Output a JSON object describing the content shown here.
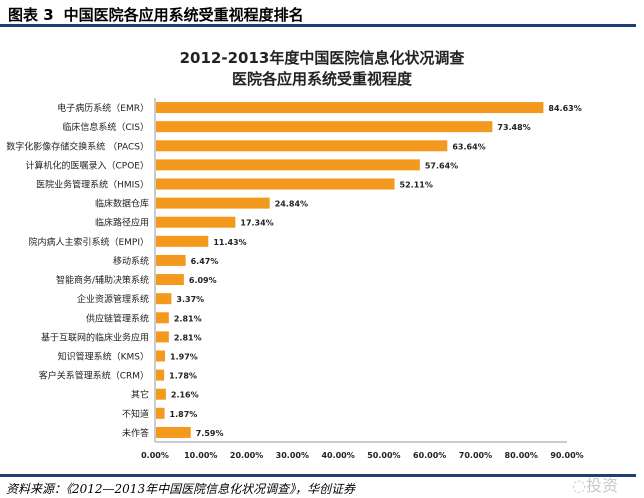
{
  "figure_label": "图表 3",
  "figure_title": "中国医院各应用系统受重视程度排名",
  "source": "资料来源：《2012—2013年中国医院信息化状况调查》，华创证券",
  "watermark": "投资",
  "chart_data": {
    "type": "bar",
    "orientation": "horizontal",
    "title": "2012-2013年度中国医院信息化状况调查",
    "subtitle": "医院各应用系统受重视程度",
    "categories": [
      "电子病历系统（EMR）",
      "临床信息系统（CIS）",
      "数字化影像存储交换系统 （PACS）",
      "计算机化的医嘱录入（CPOE）",
      "医院业务管理系统（HMIS）",
      "临床数据仓库",
      "临床路径应用",
      "院内病人主索引系统（EMPI）",
      "移动系统",
      "智能商务/辅助决策系统",
      "企业资源管理系统",
      "供应链管理系统",
      "基于互联网的临床业务应用",
      "知识管理系统（KMS）",
      "客户关系管理系统（CRM）",
      "其它",
      "不知道",
      "未作答"
    ],
    "values": [
      84.63,
      73.48,
      63.64,
      57.64,
      52.11,
      24.84,
      17.34,
      11.43,
      6.47,
      6.09,
      3.37,
      2.81,
      2.81,
      1.97,
      1.78,
      2.16,
      1.87,
      7.59
    ],
    "data_labels": [
      "84.63%",
      "73.48%",
      "63.64%",
      "57.64%",
      "52.11%",
      "24.84%",
      "17.34%",
      "11.43%",
      "6.47%",
      "6.09%",
      "3.37%",
      "2.81%",
      "2.81%",
      "1.97%",
      "1.78%",
      "2.16%",
      "1.87%",
      "7.59%"
    ],
    "xticks": [
      "0.00%",
      "10.00%",
      "20.00%",
      "30.00%",
      "40.00%",
      "50.00%",
      "60.00%",
      "70.00%",
      "80.00%",
      "90.00%"
    ],
    "xlim": [
      0,
      90
    ],
    "bar_color": "#f39a1e",
    "grid": false,
    "legend": "none"
  }
}
